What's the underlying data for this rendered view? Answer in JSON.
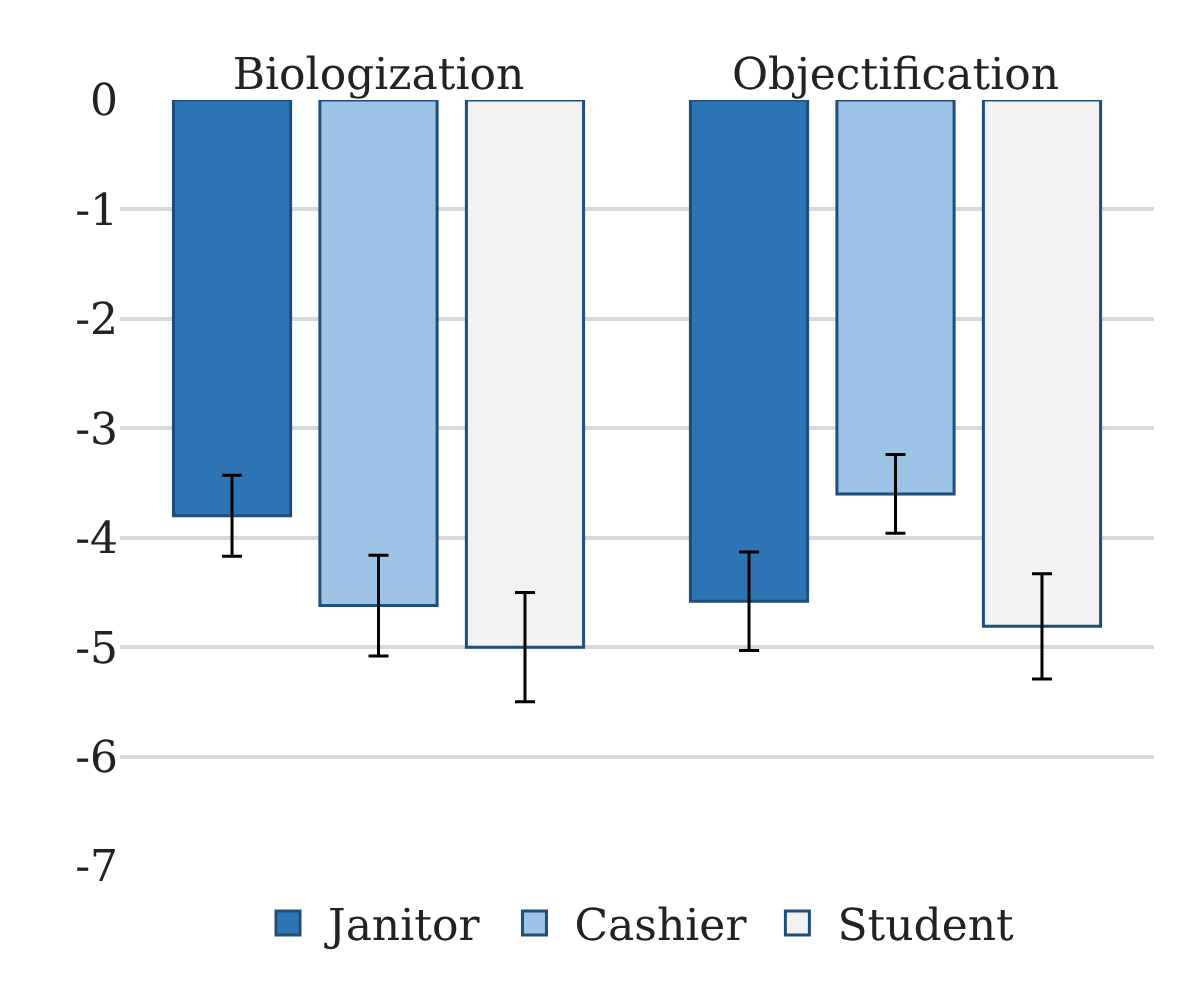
{
  "chart_data": {
    "type": "bar",
    "categories": [
      "Biologization",
      "Objectification"
    ],
    "series": [
      {
        "name": "Janitor",
        "color": "#2e75b6",
        "values": [
          -3.8,
          -4.58
        ],
        "errors": [
          0.37,
          0.45
        ]
      },
      {
        "name": "Cashier",
        "color": "#9dc3e6",
        "values": [
          -4.62,
          -3.6
        ],
        "errors": [
          0.46,
          0.36
        ]
      },
      {
        "name": "Student",
        "color": "#f2f2f2",
        "values": [
          -5.0,
          -4.81
        ],
        "errors": [
          0.5,
          0.48
        ]
      }
    ],
    "ylim": [
      -7,
      0
    ],
    "yticks": [
      0,
      -1,
      -2,
      -3,
      -4,
      -5,
      -6,
      -7
    ],
    "grid": "y",
    "legend": "bottom"
  }
}
